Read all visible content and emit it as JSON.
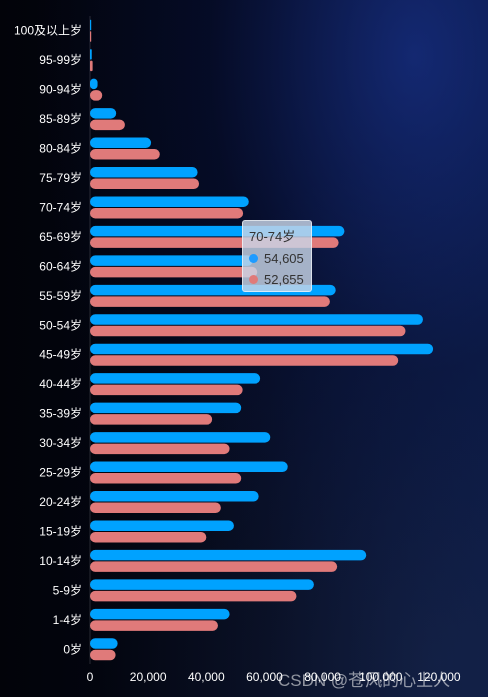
{
  "chart_data": {
    "type": "bar",
    "orientation": "horizontal",
    "categories": [
      "0岁",
      "1-4岁",
      "5-9岁",
      "10-14岁",
      "15-19岁",
      "20-24岁",
      "25-29岁",
      "30-34岁",
      "35-39岁",
      "40-44岁",
      "45-49岁",
      "50-54岁",
      "55-59岁",
      "60-64岁",
      "65-69岁",
      "70-74岁",
      "75-79岁",
      "80-84岁",
      "85-89岁",
      "90-94岁",
      "95-99岁",
      "100及以上岁"
    ],
    "series": [
      {
        "color": "#00a2ff",
        "values": [
          9500,
          48000,
          77000,
          95000,
          49500,
          58000,
          68000,
          62000,
          52000,
          58500,
          118000,
          114500,
          84500,
          56000,
          87500,
          54605,
          37000,
          21000,
          9000,
          2600,
          600,
          100
        ]
      },
      {
        "color": "#e07a7a",
        "values": [
          8800,
          44000,
          71000,
          85000,
          40000,
          45000,
          52000,
          48000,
          42000,
          52500,
          106000,
          108500,
          82500,
          57500,
          85500,
          52655,
          37500,
          24000,
          12000,
          4200,
          900,
          200
        ]
      }
    ],
    "xticks": [
      0,
      20000,
      40000,
      60000,
      80000,
      100000,
      120000
    ],
    "xtick_labels": [
      "0",
      "20,000",
      "40,000",
      "60,000",
      "80,000",
      "100,000",
      "120,000"
    ],
    "xlim": [
      0,
      130000
    ],
    "grid": false
  },
  "tooltip": {
    "title": "70-74岁",
    "rows": [
      {
        "value": "54,605",
        "color": "#1e9bff"
      },
      {
        "value": "52,655",
        "color": "#e07a7a"
      }
    ]
  },
  "watermark": "CSDN @苍风的心上人"
}
